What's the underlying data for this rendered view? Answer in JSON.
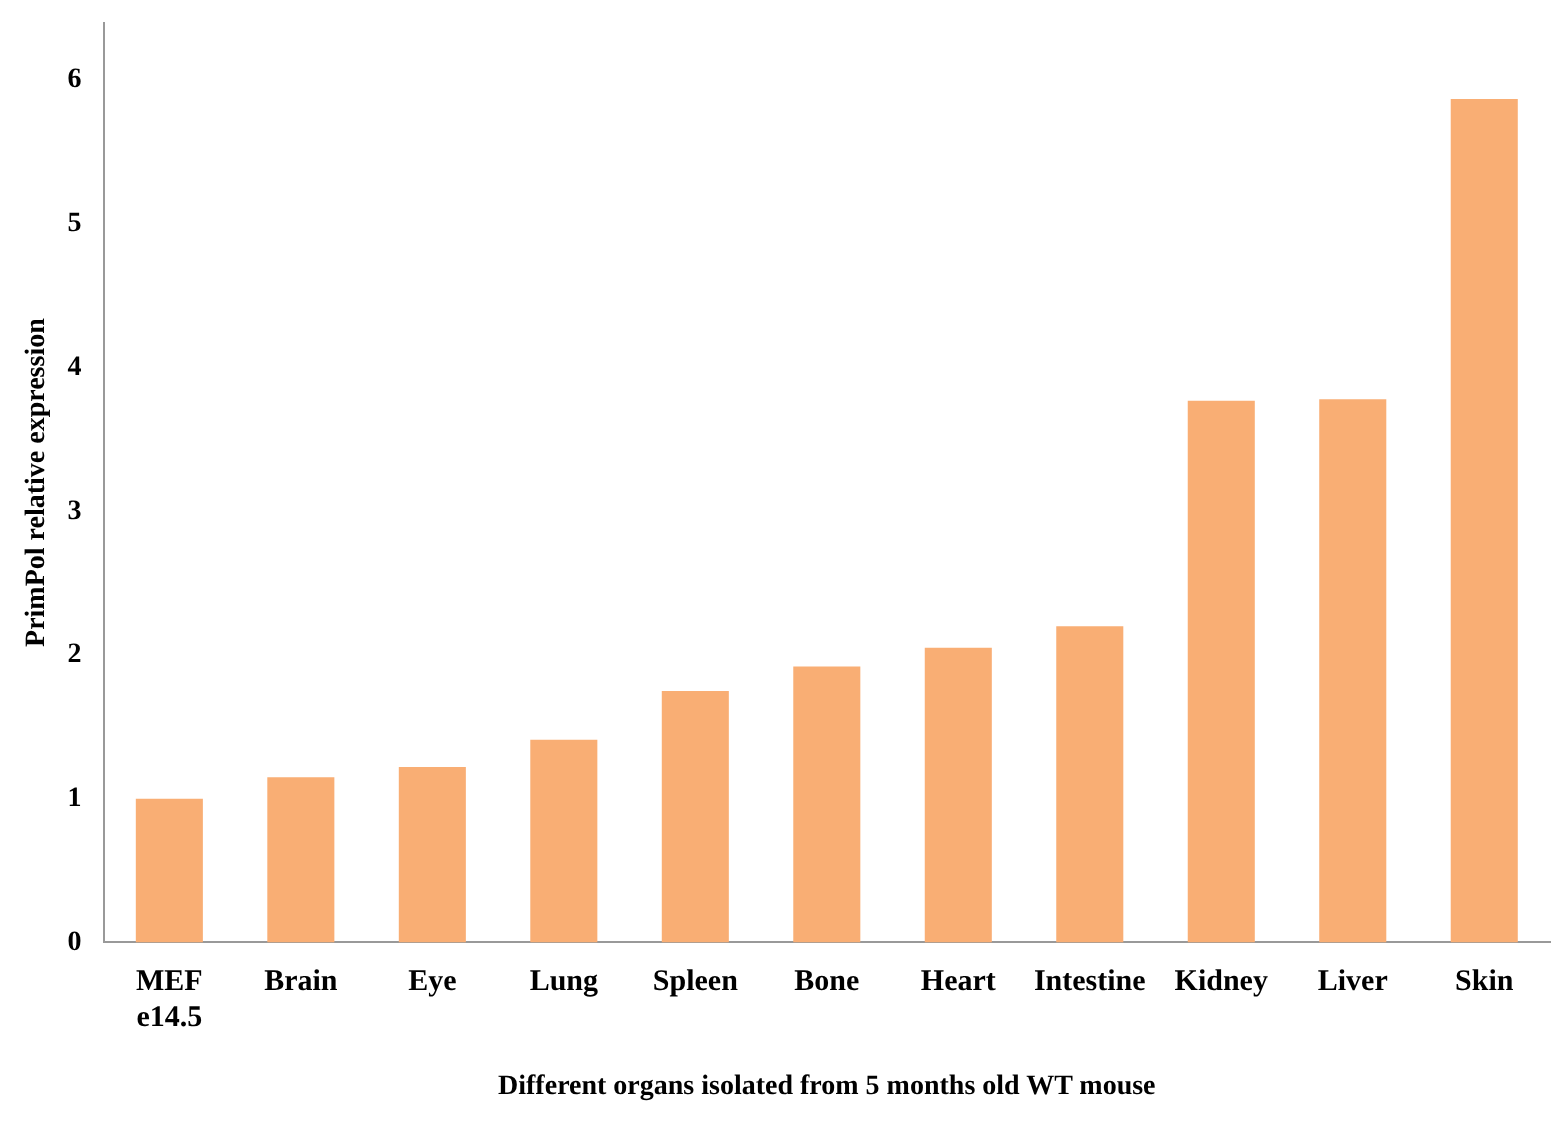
{
  "chart_data": {
    "type": "bar",
    "xlabel": "Different organs isolated from 5 months old WT mouse",
    "ylabel": "PrimPol relative expression",
    "categories": [
      "MEF e14.5",
      "Brain",
      "Eye",
      "Lung",
      "Spleen",
      "Bone",
      "Heart",
      "Intestine",
      "Kidney",
      "Liver",
      "Skin"
    ],
    "values": [
      1.0,
      1.15,
      1.22,
      1.41,
      1.75,
      1.92,
      2.05,
      2.2,
      3.77,
      3.78,
      5.87
    ],
    "color": "#f9ae74",
    "ylim": [
      0,
      6.4
    ],
    "yticks": [
      0,
      1,
      2,
      3,
      4,
      5,
      6
    ],
    "grid": false,
    "legend": false
  }
}
